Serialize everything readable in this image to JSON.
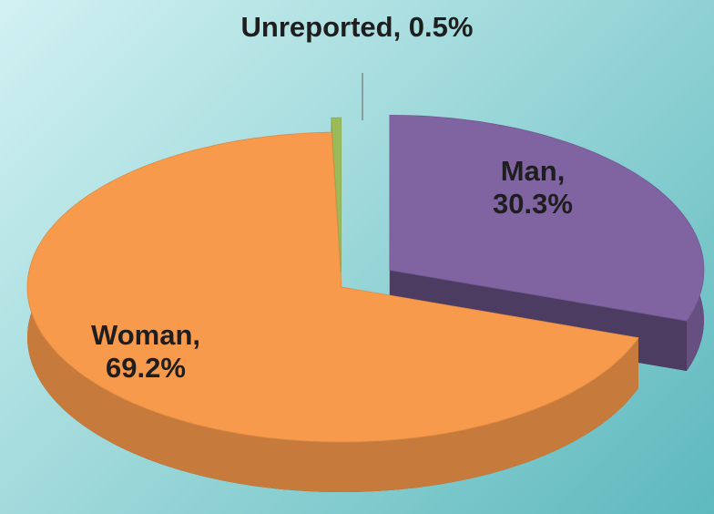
{
  "chart_data": {
    "type": "pie",
    "values": [
      30.3,
      69.2,
      0.5
    ],
    "value_labels": [
      "Man, 30.3%",
      "Woman, 69.2%",
      "Unreported, 0.5%"
    ],
    "colors": [
      "#8064a2",
      "#f79a4c",
      "#9bbb59"
    ]
  }
}
